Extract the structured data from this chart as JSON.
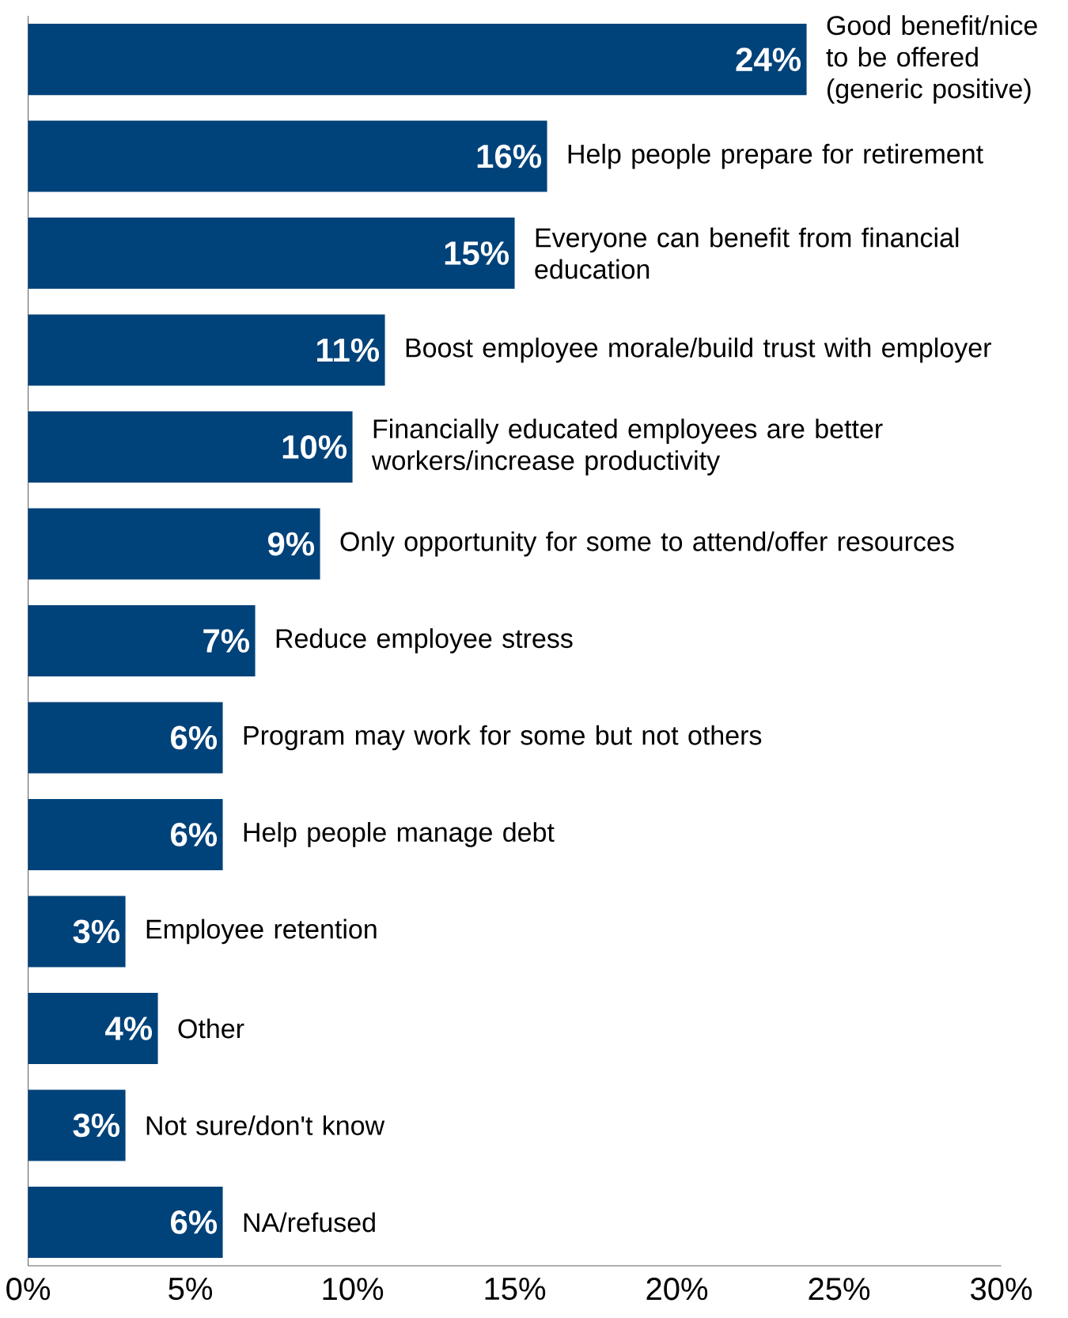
{
  "chart_data": {
    "type": "bar",
    "orientation": "horizontal",
    "color": "#00427a",
    "categories": [
      "Good benefit/nice to be offered (generic positive)",
      "Help people prepare for retirement",
      "Everyone can benefit from financial education",
      "Boost employee morale/build trust with employer",
      "Financially educated employees are better workers/increase productivity",
      "Only opportunity for some to attend/offer resources",
      "Reduce employee stress",
      "Program may work for some but not others",
      "Help people manage debt",
      "Employee retention",
      "Other",
      "Not sure/don't know",
      "NA/refused"
    ],
    "values": [
      24,
      16,
      15,
      11,
      10,
      9,
      7,
      6,
      6,
      3,
      4,
      3,
      6
    ],
    "value_labels": [
      "24%",
      "16%",
      "15%",
      "11%",
      "10%",
      "9%",
      "7%",
      "6%",
      "6%",
      "3%",
      "4%",
      "3%",
      "6%"
    ],
    "xlim": [
      0,
      30
    ],
    "xticks": [
      {
        "value": 0,
        "label": "0%"
      },
      {
        "value": 5,
        "label": "5%"
      },
      {
        "value": 10,
        "label": "10%"
      },
      {
        "value": 15,
        "label": "15%"
      },
      {
        "value": 20,
        "label": "20%"
      },
      {
        "value": 25,
        "label": "25%"
      },
      {
        "value": 30,
        "label": "30%"
      }
    ]
  }
}
